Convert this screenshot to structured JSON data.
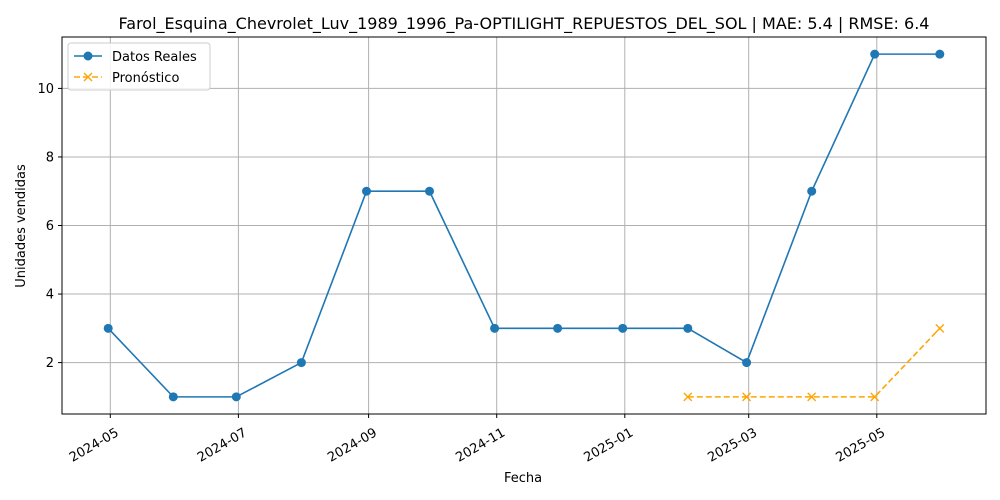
{
  "chart_data": {
    "type": "line",
    "title": "Farol_Esquina_Chevrolet_Luv_1989_1996_Pa-OPTILIGHT_REPUESTOS_DEL_SOL | MAE: 5.4 | RMSE: 6.4",
    "xlabel": "Fecha",
    "ylabel": "Unidades vendidas",
    "xlim": [
      "2024-04-08",
      "2025-06-22"
    ],
    "ylim": [
      0.5,
      11.5
    ],
    "grid": true,
    "legend_position": "top-left",
    "x_ticks": [
      "2024-05-01",
      "2024-07-01",
      "2024-09-01",
      "2024-11-01",
      "2025-01-01",
      "2025-03-01",
      "2025-05-01"
    ],
    "x_tick_labels": [
      "2024-05",
      "2024-07",
      "2024-09",
      "2024-11",
      "2025-01",
      "2025-03",
      "2025-05"
    ],
    "y_ticks": [
      2,
      4,
      6,
      8,
      10
    ],
    "y_tick_labels": [
      "2",
      "4",
      "6",
      "8",
      "10"
    ],
    "series": [
      {
        "name": "Datos Reales",
        "color": "#1f77b4",
        "line_style": "solid",
        "marker": "circle",
        "x": [
          "2024-04-30",
          "2024-05-31",
          "2024-06-30",
          "2024-07-31",
          "2024-08-31",
          "2024-09-30",
          "2024-10-31",
          "2024-11-30",
          "2024-12-31",
          "2025-01-31",
          "2025-02-28",
          "2025-03-31",
          "2025-04-30",
          "2025-05-31"
        ],
        "values": [
          3,
          1,
          1,
          2,
          7,
          7,
          3,
          3,
          3,
          3,
          2,
          7,
          11,
          11
        ]
      },
      {
        "name": "Pronóstico",
        "color": "#ffa500",
        "line_style": "dashed",
        "marker": "x",
        "x": [
          "2025-01-31",
          "2025-02-28",
          "2025-03-31",
          "2025-04-30",
          "2025-05-31"
        ],
        "values": [
          1,
          1,
          1,
          1,
          3
        ]
      }
    ]
  }
}
